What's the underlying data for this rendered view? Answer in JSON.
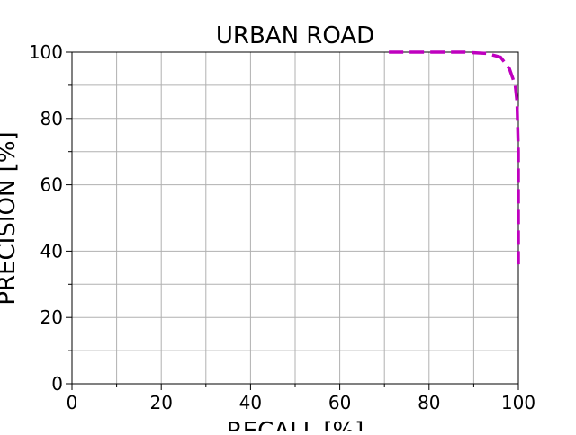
{
  "chart_data": {
    "type": "line",
    "title": "URBAN ROAD",
    "x_label": "RECALL [%]",
    "y_label": "PRECISION [%]",
    "xlim": [
      0,
      100
    ],
    "ylim": [
      0,
      100
    ],
    "xticks": [
      0,
      20,
      40,
      60,
      80,
      100
    ],
    "yticks": [
      0,
      20,
      40,
      60,
      80,
      100
    ],
    "xminorticks": [
      10,
      30,
      50,
      70,
      90
    ],
    "yminorticks": [
      10,
      30,
      50,
      70,
      90
    ],
    "grid": true,
    "series": [
      {
        "color": "#bf00bf",
        "dash": true,
        "x": [
          71,
          80,
          88,
          93,
          96,
          98,
          99.3,
          99.7,
          100,
          100,
          100
        ],
        "values": [
          100,
          100,
          100,
          99.6,
          98.5,
          95,
          90,
          85,
          70,
          50,
          36
        ]
      }
    ]
  }
}
